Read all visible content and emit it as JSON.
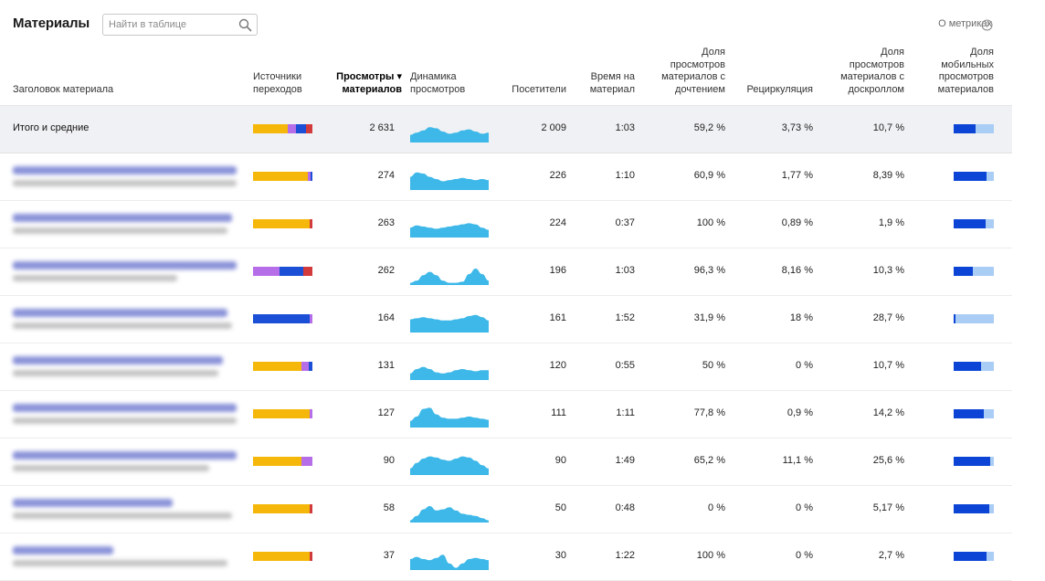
{
  "header": {
    "title": "Материалы",
    "search_placeholder": "Найти в таблице",
    "metrics_link": "О метриках"
  },
  "colors": {
    "search_engines": "#f5b80a",
    "social": "#b66ee8",
    "direct": "#1b4fd6",
    "ads": "#d23b3b",
    "sparkline": "#3eb8e8",
    "mobile_share": "#0c45d6",
    "mobile_track": "#a9cdf4"
  },
  "columns": {
    "title": "Заголовок материала",
    "sources": "Источники переходов",
    "views": "Просмотры ▾ материалов",
    "dynamics": "Динамика просмотров",
    "visitors": "Посетители",
    "time": "Время на материал",
    "read_share": "Доля просмотров материалов с дочтением",
    "recirculation": "Рециркуляция",
    "scroll_share": "Доля просмотров материалов с доскроллом",
    "mobile_share": "Доля мобильных просмотров материалов"
  },
  "total": {
    "label": "Итого и средние",
    "views": "2 631",
    "visitors": "2 009",
    "time": "1:03",
    "read_share": "59,2 %",
    "recirculation": "3,73 %",
    "scroll_share": "10,7 %",
    "sources": [
      {
        "color": "#f5b80a",
        "value": 0.58
      },
      {
        "color": "#b66ee8",
        "value": 0.14
      },
      {
        "color": "#1b4fd6",
        "value": 0.18
      },
      {
        "color": "#d23b3b",
        "value": 0.1
      }
    ],
    "mobile": 0.55,
    "spark": [
      0.35,
      0.45,
      0.55,
      0.7,
      0.65,
      0.5,
      0.4,
      0.45,
      0.55,
      0.6,
      0.5,
      0.4,
      0.45
    ]
  },
  "rows": [
    {
      "views": "274",
      "visitors": "226",
      "time": "1:10",
      "read_share": "60,9 %",
      "recirculation": "1,77 %",
      "scroll_share": "8,39 %",
      "sources": [
        {
          "color": "#f5b80a",
          "value": 0.92
        },
        {
          "color": "#b66ee8",
          "value": 0.05
        },
        {
          "color": "#1b4fd6",
          "value": 0.03
        }
      ],
      "mobile": 0.82,
      "spark": [
        0.6,
        0.8,
        0.75,
        0.6,
        0.5,
        0.4,
        0.45,
        0.5,
        0.55,
        0.5,
        0.45,
        0.5,
        0.45
      ]
    },
    {
      "views": "263",
      "visitors": "224",
      "time": "0:37",
      "read_share": "100 %",
      "recirculation": "0,89 %",
      "scroll_share": "1,9 %",
      "sources": [
        {
          "color": "#f5b80a",
          "value": 0.95
        },
        {
          "color": "#d23b3b",
          "value": 0.05
        }
      ],
      "mobile": 0.8,
      "spark": [
        0.45,
        0.55,
        0.5,
        0.45,
        0.4,
        0.45,
        0.5,
        0.55,
        0.6,
        0.65,
        0.6,
        0.45,
        0.35
      ]
    },
    {
      "views": "262",
      "visitors": "196",
      "time": "1:03",
      "read_share": "96,3 %",
      "recirculation": "8,16 %",
      "scroll_share": "10,3 %",
      "sources": [
        {
          "color": "#b66ee8",
          "value": 0.45
        },
        {
          "color": "#1b4fd6",
          "value": 0.4
        },
        {
          "color": "#d23b3b",
          "value": 0.15
        }
      ],
      "mobile": 0.48,
      "spark": [
        0.1,
        0.2,
        0.45,
        0.6,
        0.45,
        0.2,
        0.1,
        0.1,
        0.15,
        0.5,
        0.75,
        0.5,
        0.2
      ]
    },
    {
      "views": "164",
      "visitors": "161",
      "time": "1:52",
      "read_share": "31,9 %",
      "recirculation": "18 %",
      "scroll_share": "28,7 %",
      "sources": [
        {
          "color": "#1b4fd6",
          "value": 0.96
        },
        {
          "color": "#b66ee8",
          "value": 0.04
        }
      ],
      "mobile": 0.04,
      "spark": [
        0.6,
        0.65,
        0.7,
        0.65,
        0.6,
        0.55,
        0.55,
        0.6,
        0.65,
        0.75,
        0.8,
        0.7,
        0.55
      ]
    },
    {
      "views": "131",
      "visitors": "120",
      "time": "0:55",
      "read_share": "50 %",
      "recirculation": "0 %",
      "scroll_share": "10,7 %",
      "sources": [
        {
          "color": "#f5b80a",
          "value": 0.82
        },
        {
          "color": "#b66ee8",
          "value": 0.12
        },
        {
          "color": "#1b4fd6",
          "value": 0.06
        }
      ],
      "mobile": 0.68,
      "spark": [
        0.3,
        0.5,
        0.6,
        0.5,
        0.35,
        0.3,
        0.35,
        0.45,
        0.5,
        0.45,
        0.4,
        0.45,
        0.45
      ]
    },
    {
      "views": "127",
      "visitors": "111",
      "time": "1:11",
      "read_share": "77,8 %",
      "recirculation": "0,9 %",
      "scroll_share": "14,2 %",
      "sources": [
        {
          "color": "#f5b80a",
          "value": 0.96
        },
        {
          "color": "#b66ee8",
          "value": 0.04
        }
      ],
      "mobile": 0.75,
      "spark": [
        0.3,
        0.5,
        0.85,
        0.9,
        0.6,
        0.45,
        0.4,
        0.4,
        0.45,
        0.5,
        0.45,
        0.4,
        0.35
      ]
    },
    {
      "views": "90",
      "visitors": "90",
      "time": "1:49",
      "read_share": "65,2 %",
      "recirculation": "11,1 %",
      "scroll_share": "25,6 %",
      "sources": [
        {
          "color": "#f5b80a",
          "value": 0.82
        },
        {
          "color": "#b66ee8",
          "value": 0.18
        }
      ],
      "mobile": 0.9,
      "spark": [
        0.3,
        0.55,
        0.75,
        0.85,
        0.8,
        0.7,
        0.65,
        0.75,
        0.85,
        0.8,
        0.65,
        0.45,
        0.3
      ]
    },
    {
      "views": "58",
      "visitors": "50",
      "time": "0:48",
      "read_share": "0 %",
      "recirculation": "0 %",
      "scroll_share": "5,17 %",
      "sources": [
        {
          "color": "#f5b80a",
          "value": 0.96
        },
        {
          "color": "#d23b3b",
          "value": 0.04
        }
      ],
      "mobile": 0.88,
      "spark": [
        0.1,
        0.3,
        0.6,
        0.75,
        0.55,
        0.6,
        0.7,
        0.55,
        0.4,
        0.35,
        0.3,
        0.2,
        0.1
      ]
    },
    {
      "views": "37",
      "visitors": "30",
      "time": "1:22",
      "read_share": "100 %",
      "recirculation": "0 %",
      "scroll_share": "2,7 %",
      "sources": [
        {
          "color": "#f5b80a",
          "value": 0.96
        },
        {
          "color": "#d23b3b",
          "value": 0.04
        }
      ],
      "mobile": 0.82,
      "spark": [
        0.5,
        0.6,
        0.5,
        0.45,
        0.55,
        0.7,
        0.3,
        0.1,
        0.3,
        0.5,
        0.55,
        0.5,
        0.45
      ]
    }
  ]
}
